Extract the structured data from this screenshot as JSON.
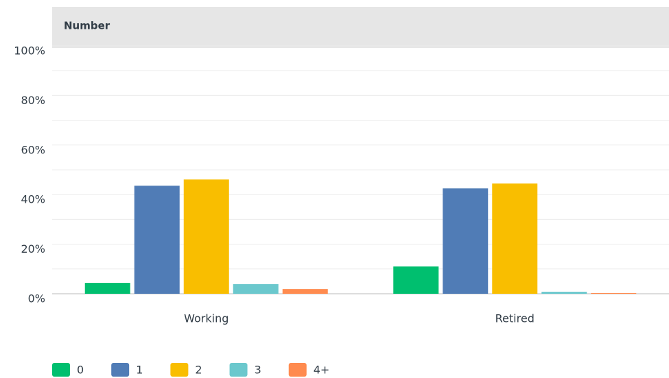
{
  "chart_data": {
    "type": "bar",
    "title": "Number",
    "categories": [
      "Working",
      "Retired"
    ],
    "series": [
      {
        "name": "0",
        "color": "#00bf6f",
        "values": [
          4.4,
          11.0
        ]
      },
      {
        "name": "1",
        "color": "#507cb6",
        "values": [
          43.6,
          42.5
        ]
      },
      {
        "name": "2",
        "color": "#f9be00",
        "values": [
          46.1,
          44.5
        ]
      },
      {
        "name": "3",
        "color": "#6bc8cd",
        "values": [
          3.9,
          0.8
        ]
      },
      {
        "name": "4+",
        "color": "#ff8b4f",
        "values": [
          1.9,
          0.3
        ]
      }
    ],
    "ylim": [
      0,
      100
    ],
    "yticks": [
      {
        "value": 0,
        "label": "0%"
      },
      {
        "value": 20,
        "label": "20%"
      },
      {
        "value": 40,
        "label": "40%"
      },
      {
        "value": 60,
        "label": "60%"
      },
      {
        "value": 80,
        "label": "80%"
      },
      {
        "value": 100,
        "label": "100%"
      }
    ],
    "minor_yticks": [
      10,
      30,
      50,
      70,
      90
    ],
    "grid": true
  }
}
